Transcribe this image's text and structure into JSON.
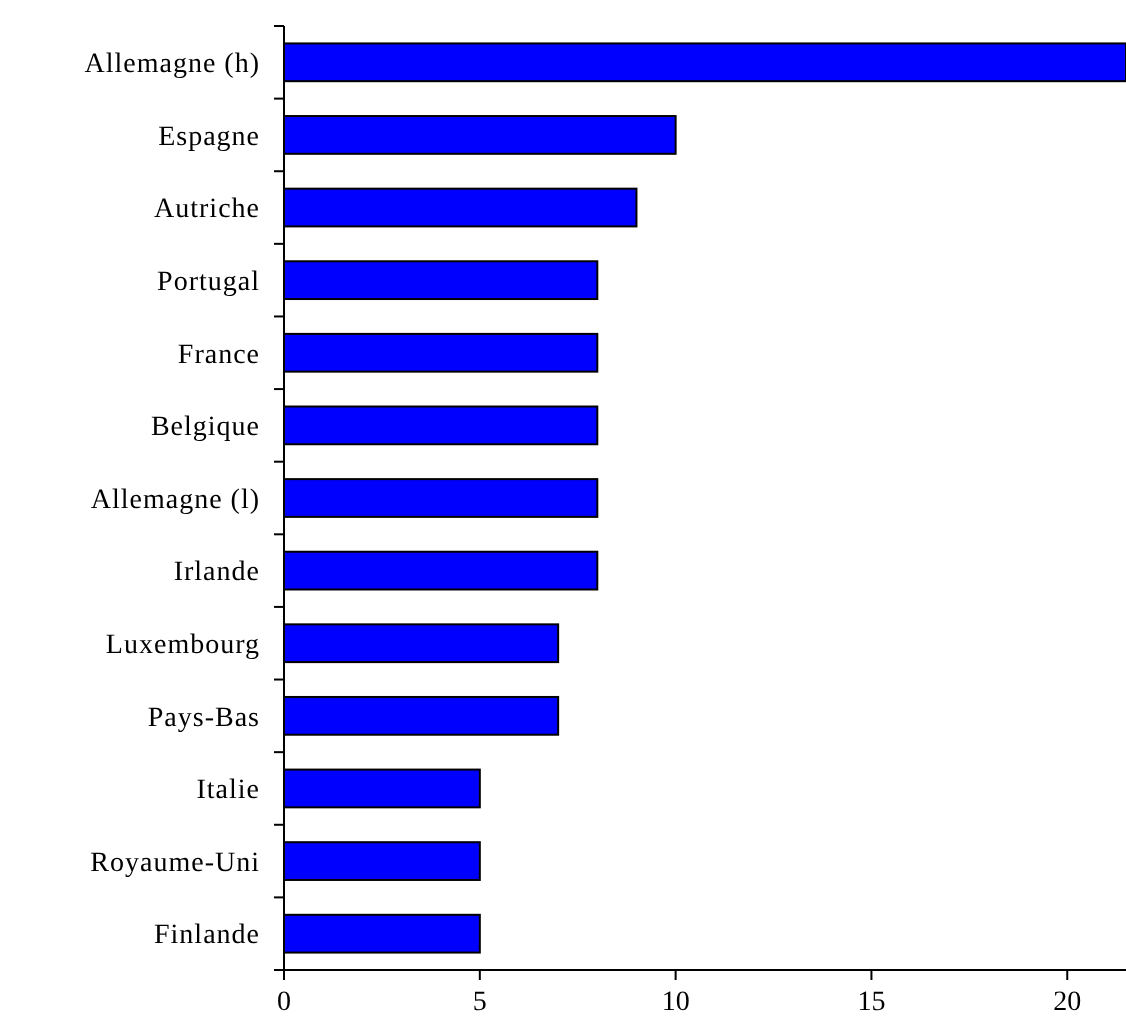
{
  "chart_data": {
    "type": "bar",
    "orientation": "horizontal",
    "categories": [
      "Allemagne (h)",
      "Espagne",
      "Autriche",
      "Portugal",
      "France",
      "Belgique",
      "Allemagne (l)",
      "Irlande",
      "Luxembourg",
      "Pays-Bas",
      "Italie",
      "Royaume-Uni",
      "Finlande"
    ],
    "values": [
      21.5,
      10,
      9,
      8,
      8,
      8,
      8,
      8,
      7,
      7,
      5,
      5,
      5
    ],
    "color": "#0000ff",
    "xlim": [
      0,
      21.5
    ],
    "xticks": [
      0,
      5,
      10,
      15,
      20
    ]
  }
}
